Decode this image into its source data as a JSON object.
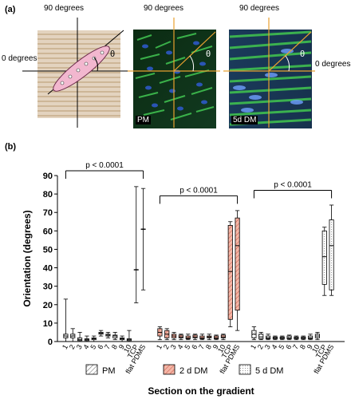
{
  "panel_a": {
    "label": "(a)",
    "angle_top": "90 degrees",
    "angle_left": "0 degrees",
    "angle_right": "0 degrees",
    "theta": "θ",
    "images": [
      {
        "name": "schematic",
        "angle_top": "90 degrees",
        "theta": "θ",
        "caption": ""
      },
      {
        "name": "pm-micrograph",
        "angle_top": "90 degrees",
        "theta": "θ",
        "caption": "PM"
      },
      {
        "name": "dm-micrograph",
        "angle_top": "90 degrees",
        "theta": "θ",
        "caption": "5d DM"
      }
    ]
  },
  "panel_b_label": "(b)",
  "chart_data": {
    "type": "boxplot",
    "ylabel": "Orientation (degrees)",
    "xlabel": "Section on the gradient",
    "ylim": [
      0,
      90
    ],
    "yticks": [
      0,
      10,
      20,
      30,
      40,
      50,
      60,
      70,
      80,
      90
    ],
    "categories": [
      "1",
      "2",
      "3",
      "4",
      "5",
      "6",
      "7",
      "8",
      "9",
      "10",
      "TCP",
      "flat PDMS"
    ],
    "legend": [
      "PM",
      "2 d DM",
      "5 d DM"
    ],
    "legend_position": "bottom",
    "colors": {
      "PM": "#d9d9d9",
      "2 d DM": "#f4b6a6",
      "5 d DM": "#ffffff"
    },
    "significance": [
      {
        "text": "p < 0.0001",
        "group": "PM"
      },
      {
        "text": "p < 0.0001",
        "group": "2 d DM"
      },
      {
        "text": "p < 0.0001",
        "group": "5 d DM"
      }
    ],
    "series": [
      {
        "name": "PM",
        "boxes": [
          {
            "min": 0,
            "q1": 2,
            "median": 3,
            "q3": 4,
            "max": 23
          },
          {
            "min": 0,
            "q1": 2,
            "median": 3,
            "q3": 4,
            "max": 7
          },
          {
            "min": 0,
            "q1": 0.5,
            "median": 1,
            "q3": 2,
            "max": 5
          },
          {
            "min": 0,
            "q1": 0.5,
            "median": 1,
            "q3": 1.5,
            "max": 3
          },
          {
            "min": 0,
            "q1": 1,
            "median": 1.5,
            "q3": 2,
            "max": 3
          },
          {
            "min": 3,
            "q1": 4,
            "median": 4.5,
            "q3": 5,
            "max": 6
          },
          {
            "min": 2,
            "q1": 3,
            "median": 3.5,
            "q3": 4,
            "max": 5
          },
          {
            "min": 1,
            "q1": 2,
            "median": 3,
            "q3": 3.5,
            "max": 5
          },
          {
            "min": 0,
            "q1": 1,
            "median": 1.5,
            "q3": 2,
            "max": 3
          },
          {
            "min": 0,
            "q1": 0.5,
            "median": 1,
            "q3": 1.5,
            "max": 6
          },
          {
            "min": 21,
            "q1": 39,
            "median": 39,
            "q3": 39,
            "max": 84
          },
          {
            "min": 28,
            "q1": 61,
            "median": 61,
            "q3": 61,
            "max": 83
          }
        ]
      },
      {
        "name": "2 d DM",
        "boxes": [
          {
            "min": 1,
            "q1": 3,
            "median": 5,
            "q3": 7,
            "max": 8
          },
          {
            "min": 1,
            "q1": 2,
            "median": 4,
            "q3": 6,
            "max": 7
          },
          {
            "min": 1,
            "q1": 2,
            "median": 3,
            "q3": 4,
            "max": 5
          },
          {
            "min": 1,
            "q1": 2,
            "median": 2.5,
            "q3": 3.5,
            "max": 4
          },
          {
            "min": 1,
            "q1": 1.5,
            "median": 2,
            "q3": 3,
            "max": 4
          },
          {
            "min": 1,
            "q1": 2,
            "median": 2.5,
            "q3": 3.5,
            "max": 4
          },
          {
            "min": 1,
            "q1": 1.5,
            "median": 2,
            "q3": 3,
            "max": 4
          },
          {
            "min": 1,
            "q1": 2,
            "median": 2.5,
            "q3": 3,
            "max": 4
          },
          {
            "min": 1,
            "q1": 1.5,
            "median": 2,
            "q3": 3,
            "max": 3.5
          },
          {
            "min": 1,
            "q1": 2,
            "median": 2.5,
            "q3": 3.5,
            "max": 4
          },
          {
            "min": 8,
            "q1": 12,
            "median": 38,
            "q3": 63,
            "max": 65
          },
          {
            "min": 6,
            "q1": 17,
            "median": 52,
            "q3": 67,
            "max": 71
          }
        ]
      },
      {
        "name": "5 d DM",
        "boxes": [
          {
            "min": 1,
            "q1": 2,
            "median": 4,
            "q3": 6,
            "max": 8
          },
          {
            "min": 1,
            "q1": 1.5,
            "median": 2.5,
            "q3": 4,
            "max": 5
          },
          {
            "min": 1,
            "q1": 1.5,
            "median": 2,
            "q3": 3,
            "max": 4
          },
          {
            "min": 1,
            "q1": 1.5,
            "median": 2,
            "q3": 2.5,
            "max": 3
          },
          {
            "min": 1,
            "q1": 1.5,
            "median": 2,
            "q3": 2.5,
            "max": 3
          },
          {
            "min": 1,
            "q1": 1.5,
            "median": 2,
            "q3": 3,
            "max": 3.5
          },
          {
            "min": 1,
            "q1": 1.5,
            "median": 2,
            "q3": 2.5,
            "max": 3
          },
          {
            "min": 1,
            "q1": 1.5,
            "median": 2,
            "q3": 2.5,
            "max": 3
          },
          {
            "min": 1,
            "q1": 1.5,
            "median": 2,
            "q3": 3,
            "max": 4
          },
          {
            "min": 1,
            "q1": 2,
            "median": 3,
            "q3": 4,
            "max": 5
          },
          {
            "min": 25,
            "q1": 31,
            "median": 46,
            "q3": 60,
            "max": 62
          },
          {
            "min": 25,
            "q1": 28,
            "median": 52,
            "q3": 66,
            "max": 74
          }
        ]
      }
    ]
  }
}
